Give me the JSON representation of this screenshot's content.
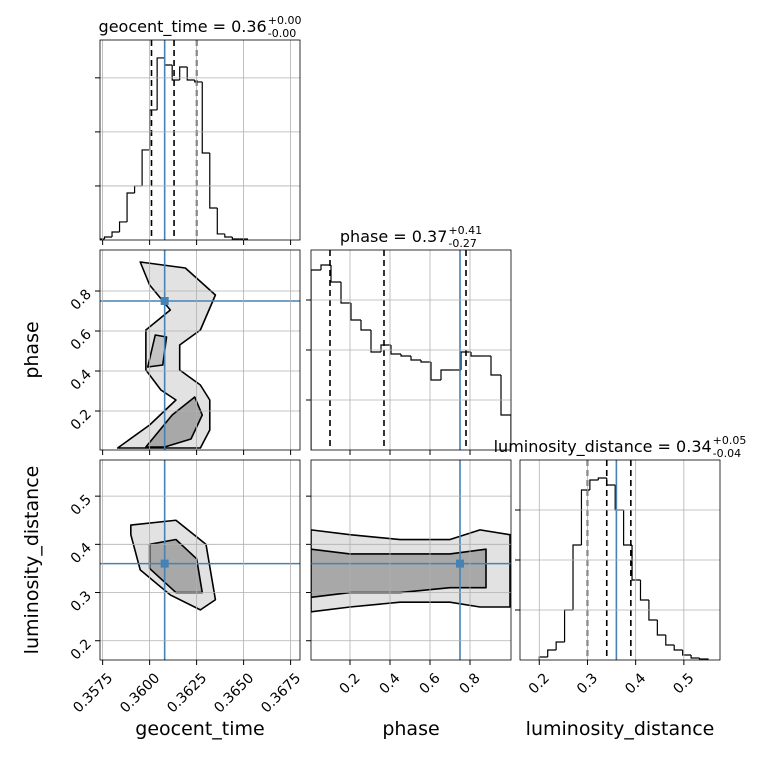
{
  "chart_data": [
    {
      "type": "histogram",
      "title": "geocent_time = 0.36",
      "title_upper": "+0.00",
      "title_lower": "-0.00",
      "bins": [
        0.3572,
        0.3576,
        0.358,
        0.3584,
        0.3588,
        0.3592,
        0.3596,
        0.36,
        0.3604,
        0.3608,
        0.3612,
        0.3616,
        0.362,
        0.3624,
        0.3628,
        0.3632,
        0.3636,
        0.364,
        0.3644,
        0.3648,
        0.3652
      ],
      "counts": [
        9,
        28,
        74,
        167,
        435,
        500,
        833,
        1203,
        1684,
        1619,
        1480,
        1600,
        1480,
        1462,
        805,
        296,
        56,
        28,
        9,
        9
      ],
      "color": "#000000",
      "xlim": [
        0.35736,
        0.368
      ],
      "xticks": [
        0.3575,
        {
          "value": 0.36,
          "label": "0.3600"
        },
        0.3625,
        {
          "value": 0.365,
          "label": "0.3650"
        },
        0.3675
      ],
      "xticklabels": false,
      "ylim": [
        0,
        1850
      ],
      "yticks": [
        500,
        1000,
        1500
      ],
      "quantiles": [
        0.3601,
        0.3613,
        0.3625
      ],
      "truth": 0.3608,
      "grid": true
    },
    {
      "type": "contour",
      "xlim": [
        0.35736,
        0.368
      ],
      "xticks": [
        0.3575,
        {
          "value": 0.36,
          "label": "0.3600"
        },
        0.3625,
        {
          "value": 0.365,
          "label": "0.3650"
        },
        0.3675
      ],
      "xticklabels": false,
      "ylim": [
        0.005,
        1.005
      ],
      "yticks": [
        0.2,
        0.4,
        0.6,
        0.8
      ],
      "yticklabels": true,
      "ylabel": "phase",
      "contours": [
        {
          "fill": "#e2e2e2",
          "x": [
            0.3595,
            0.3619,
            0.3635,
            0.3627,
            0.3616,
            0.3616,
            0.3627,
            0.3632,
            0.3632,
            0.3627,
            0.3583,
            0.36,
            0.3614,
            0.3606,
            0.3598,
            0.3598,
            0.3611,
            0.36,
            0.3595
          ],
          "y": [
            0.945,
            0.915,
            0.78,
            0.605,
            0.53,
            0.405,
            0.33,
            0.255,
            0.105,
            0.015,
            0.015,
            0.13,
            0.255,
            0.305,
            0.405,
            0.605,
            0.705,
            0.83,
            0.945
          ]
        },
        {
          "fill": "#a8a8a8",
          "x": [
            0.3598,
            0.3612,
            0.3624,
            0.3628,
            0.3622,
            0.3608,
            0.3598
          ],
          "y": [
            0.02,
            0.18,
            0.27,
            0.18,
            0.06,
            0.02,
            0.02
          ]
        },
        {
          "fill": "#c4c4c4",
          "x": [
            0.3599,
            0.3607,
            0.3609,
            0.3603,
            0.3599
          ],
          "y": [
            0.42,
            0.43,
            0.57,
            0.58,
            0.42
          ]
        }
      ],
      "truth": [
        0.3608,
        0.75
      ],
      "truth_color": "#4682b4",
      "grid": true
    },
    {
      "type": "histogram",
      "title": "phase = 0.37",
      "title_upper": "+0.41",
      "title_lower": "-0.27",
      "bins": [
        0.005,
        0.055,
        0.105,
        0.155,
        0.205,
        0.255,
        0.305,
        0.355,
        0.405,
        0.455,
        0.505,
        0.555,
        0.605,
        0.655,
        0.705,
        0.755,
        0.805,
        0.855,
        0.905,
        0.955,
        1.005
      ],
      "counts": [
        900,
        925,
        840,
        735,
        650,
        600,
        490,
        525,
        480,
        470,
        450,
        440,
        350,
        400,
        400,
        490,
        470,
        470,
        375,
        175
      ],
      "color": "#000000",
      "xlim": [
        0.005,
        1.005
      ],
      "xticks": [
        0.2,
        0.4,
        0.6,
        0.8
      ],
      "xticklabels": false,
      "ylim": [
        0,
        1000
      ],
      "yticks": [
        250,
        500,
        750
      ],
      "quantiles": [
        0.1,
        0.37,
        0.78
      ],
      "truth": 0.75,
      "grid": true
    },
    {
      "type": "contour",
      "xlim": [
        0.35736,
        0.368
      ],
      "xticks": [
        0.3575,
        {
          "value": 0.36,
          "label": "0.3600"
        },
        0.3625,
        {
          "value": 0.365,
          "label": "0.3650"
        },
        0.3675
      ],
      "xticklabels": true,
      "xlabel": "geocent_time",
      "ylim": [
        0.16,
        0.575
      ],
      "yticks": [
        0.2,
        0.3,
        0.4,
        0.5
      ],
      "yticklabels": true,
      "ylabel": "luminosity_distance",
      "contours": [
        {
          "fill": "#e2e2e2",
          "x": [
            0.359,
            0.3614,
            0.363,
            0.3635,
            0.3627,
            0.3611,
            0.3595,
            0.359
          ],
          "y": [
            0.44,
            0.45,
            0.4,
            0.285,
            0.264,
            0.295,
            0.347,
            0.42
          ]
        },
        {
          "fill": "#a8a8a8",
          "x": [
            0.36,
            0.3614,
            0.3625,
            0.3628,
            0.3614,
            0.36
          ],
          "y": [
            0.4,
            0.41,
            0.37,
            0.3,
            0.3,
            0.35
          ]
        }
      ],
      "truth": [
        0.3608,
        0.36
      ],
      "truth_color": "#4682b4",
      "grid": true
    },
    {
      "type": "contour",
      "xlim": [
        0.005,
        1.005
      ],
      "xticks": [
        0.2,
        0.4,
        0.6,
        0.8
      ],
      "xticklabels": true,
      "xlabel": "phase",
      "ylim": [
        0.16,
        0.575
      ],
      "yticks": [
        0.2,
        0.3,
        0.4,
        0.5
      ],
      "yticklabels": false,
      "contours": [
        {
          "fill": "#e2e2e2",
          "x": [
            0.005,
            0.2,
            0.45,
            0.7,
            0.85,
            1.0,
            1.0,
            0.85,
            0.7,
            0.45,
            0.2,
            0.005
          ],
          "y": [
            0.43,
            0.42,
            0.41,
            0.41,
            0.43,
            0.42,
            0.27,
            0.27,
            0.28,
            0.28,
            0.27,
            0.26
          ]
        },
        {
          "fill": "#a8a8a8",
          "x": [
            0.005,
            0.2,
            0.45,
            0.7,
            0.88,
            0.88,
            0.7,
            0.45,
            0.2,
            0.005
          ],
          "y": [
            0.39,
            0.38,
            0.38,
            0.38,
            0.39,
            0.31,
            0.31,
            0.3,
            0.3,
            0.29
          ]
        }
      ],
      "truth": [
        0.75,
        0.36
      ],
      "truth_color": "#4682b4",
      "grid": true
    },
    {
      "type": "histogram",
      "title": "luminosity_distance = 0.34",
      "title_upper": "+0.05",
      "title_lower": "-0.04",
      "bins": [
        0.2,
        0.2175,
        0.235,
        0.2525,
        0.27,
        0.2875,
        0.305,
        0.3225,
        0.34,
        0.3575,
        0.375,
        0.3925,
        0.41,
        0.4275,
        0.445,
        0.4625,
        0.48,
        0.4975,
        0.515,
        0.5325,
        0.55
      ],
      "counts": [
        15,
        50,
        90,
        250,
        575,
        850,
        900,
        910,
        875,
        750,
        575,
        400,
        300,
        200,
        125,
        75,
        50,
        25,
        10,
        5
      ],
      "color": "#000000",
      "xlim": [
        0.16,
        0.575
      ],
      "xticks": [
        0.2,
        0.3,
        0.4,
        0.5
      ],
      "xticklabels": true,
      "xlabel": "luminosity_distance",
      "ylim": [
        0,
        1000
      ],
      "yticks": [
        250,
        500,
        750
      ],
      "quantiles": [
        0.3,
        0.34,
        0.39
      ],
      "truth": 0.36,
      "grid": true
    }
  ]
}
